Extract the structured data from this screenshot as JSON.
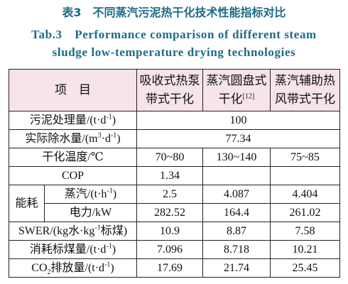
{
  "title_cn": "表3　不同蒸汽污泥热干化技术性能指标对比",
  "title_en": [
    "Tab.3　Performance comparison of different steam",
    "sludge low-temperature drying technologies"
  ],
  "table": {
    "header": {
      "item": "项　目",
      "columns": [
        "吸收式热泵带式干化",
        "蒸汽圆盘式干化",
        "蒸汽辅助热风带式干化"
      ],
      "ref": "[12]"
    },
    "rows": [
      {
        "label": [
          "污泥处理量/(t·d",
          "-1",
          ")"
        ],
        "values": [
          100
        ]
      },
      {
        "label": [
          "实际除水量/(m",
          "3",
          "·d",
          "-1",
          ")"
        ],
        "values": [
          77.34
        ]
      },
      {
        "label": [
          "干化温度/℃"
        ],
        "values": [
          "70~80",
          "130~140",
          "75~85"
        ]
      },
      {
        "label": [
          "COP"
        ],
        "values": [
          1.34
        ]
      },
      {
        "group": "能耗",
        "label": [
          "蒸汽/(t·h",
          "-1",
          ")"
        ],
        "values": [
          2.5,
          4.087,
          4.404
        ]
      },
      {
        "label": [
          "电力/kW"
        ],
        "values": [
          282.52,
          164.4,
          261.02
        ]
      },
      {
        "label": [
          "SWER/(kg水·kg",
          "-1",
          "标煤)"
        ],
        "values": [
          10.9,
          8.87,
          7.58
        ]
      },
      {
        "label": [
          "消耗标煤量/(t·d",
          "-1",
          ")"
        ],
        "values": [
          7.096,
          8.718,
          10.21
        ]
      },
      {
        "label": [
          "CO",
          "2",
          "排放量/(t·d",
          "-1",
          ")"
        ],
        "values": [
          17.69,
          21.74,
          25.45
        ]
      }
    ]
  }
}
